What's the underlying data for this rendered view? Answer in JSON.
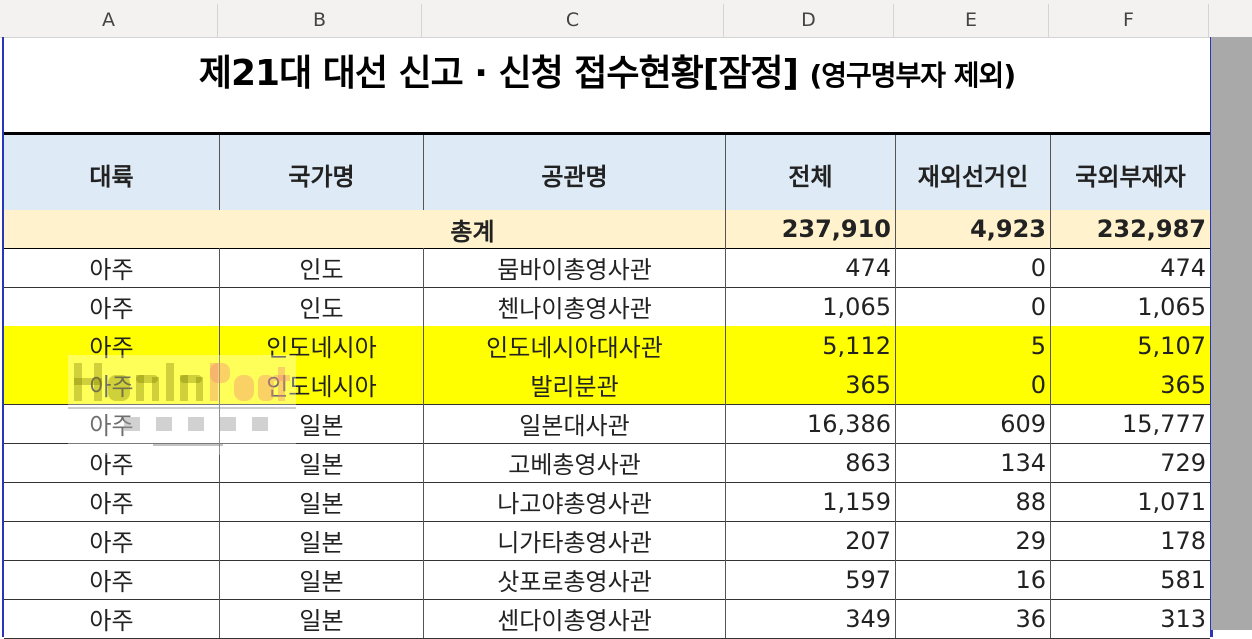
{
  "columns": [
    "A",
    "B",
    "C",
    "D",
    "E",
    "F"
  ],
  "title": "제21대 대선 신고 · 신청 접수현황[잠정]",
  "title_sub": "(영구명부자  제외)",
  "headers": [
    "대륙",
    "국가명",
    "공관명",
    "전체",
    "재외선거인",
    "국외부재자"
  ],
  "total": {
    "label": "총계",
    "all": "237,910",
    "overseas": "4,923",
    "absentee": "232,987"
  },
  "rows": [
    [
      "아주",
      "인도",
      "뭄바이총영사관",
      "474",
      "0",
      "474"
    ],
    [
      "아주",
      "인도",
      "첸나이총영사관",
      "1,065",
      "0",
      "1,065"
    ],
    [
      "아주",
      "인도네시아",
      "인도네시아대사관",
      "5,112",
      "5",
      "5,107"
    ],
    [
      "아주",
      "인도네시아",
      "발리분관",
      "365",
      "0",
      "365"
    ],
    [
      "아주",
      "일본",
      "일본대사관",
      "16,386",
      "609",
      "15,777"
    ],
    [
      "아주",
      "일본",
      "고베총영사관",
      "863",
      "134",
      "729"
    ],
    [
      "아주",
      "일본",
      "나고야총영사관",
      "1,159",
      "88",
      "1,071"
    ],
    [
      "아주",
      "일본",
      "니가타총영사관",
      "207",
      "29",
      "178"
    ],
    [
      "아주",
      "일본",
      "삿포로총영사관",
      "597",
      "16",
      "581"
    ],
    [
      "아주",
      "일본",
      "센다이총영사관",
      "349",
      "36",
      "313"
    ]
  ],
  "highlighted_rows": [
    2,
    3
  ],
  "colors": {
    "header_bg": "#deebf6",
    "total_bg": "#fff2cc",
    "highlight": "#ffff00",
    "selection": "#2a35b8"
  },
  "watermark": {
    "brand": "HanInPost",
    "korean": "한인포스트",
    "url": "www.haninpost.com"
  }
}
